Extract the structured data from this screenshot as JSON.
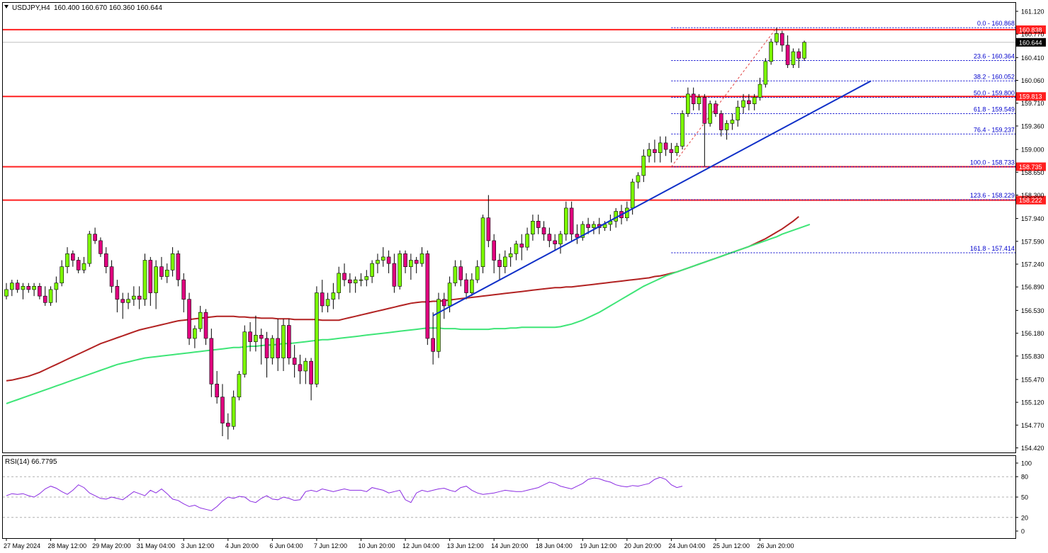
{
  "header": {
    "symbol": "USDJPY,H4",
    "ohlc": "160.400 160.670 160.360 160.644"
  },
  "rsi": {
    "label": "RSI(14) 66.7795",
    "levels": [
      100,
      80,
      50,
      20,
      0
    ],
    "ticks": [
      "100",
      "80",
      "50",
      "20",
      "0"
    ],
    "range": [
      0,
      100
    ],
    "series": [
      52,
      55,
      54,
      55,
      52,
      50,
      55,
      62,
      66,
      63,
      58,
      54,
      60,
      68,
      64,
      56,
      52,
      48,
      47,
      50,
      48,
      46,
      52,
      58,
      55,
      52,
      60,
      56,
      62,
      55,
      47,
      45,
      40,
      36,
      38,
      34,
      32,
      30,
      36,
      44,
      50,
      48,
      51,
      50,
      44,
      42,
      48,
      52,
      47,
      46,
      50,
      48,
      45,
      46,
      58,
      60,
      58,
      62,
      60,
      58,
      60,
      62,
      60,
      60,
      60,
      58,
      64,
      62,
      60,
      56,
      58,
      60,
      46,
      42,
      56,
      60,
      58,
      60,
      62,
      63,
      60,
      58,
      64,
      66,
      60,
      56,
      54,
      55,
      56,
      58,
      60,
      59,
      58,
      58,
      60,
      62,
      64,
      68,
      72,
      70,
      66,
      64,
      62,
      66,
      70,
      76,
      78,
      77,
      74,
      72,
      68,
      66,
      65,
      67,
      66,
      68,
      70,
      76,
      79,
      76,
      68,
      64,
      66
    ]
  },
  "chart_data": {
    "type": "candlestick",
    "symbol": "USDJPY",
    "timeframe": "H4",
    "ylim": [
      154.35,
      161.25
    ],
    "y_ticks": [
      "161.120",
      "160.770",
      "160.410",
      "160.060",
      "159.710",
      "159.360",
      "159.000",
      "158.650",
      "158.300",
      "157.940",
      "157.590",
      "157.240",
      "156.890",
      "156.530",
      "156.180",
      "155.830",
      "155.470",
      "155.120",
      "154.770",
      "154.420"
    ],
    "y_tick_values": [
      161.12,
      160.77,
      160.41,
      160.06,
      159.71,
      159.36,
      159.0,
      158.65,
      158.3,
      157.94,
      157.59,
      157.24,
      156.89,
      156.53,
      156.18,
      155.83,
      155.47,
      155.12,
      154.77,
      154.42
    ],
    "x_labels": [
      "27 May 2024",
      "28 May 12:00",
      "29 May 20:00",
      "31 May 04:00",
      "3 Jun 12:00",
      "4 Jun 20:00",
      "6 Jun 04:00",
      "7 Jun 12:00",
      "10 Jun 20:00",
      "12 Jun 04:00",
      "13 Jun 12:00",
      "14 Jun 20:00",
      "18 Jun 04:00",
      "19 Jun 12:00",
      "20 Jun 20:00",
      "24 Jun 04:00",
      "25 Jun 12:00",
      "26 Jun 20:00"
    ],
    "x_label_bars": [
      0,
      8,
      16,
      24,
      32,
      40,
      48,
      56,
      64,
      72,
      80,
      88,
      96,
      104,
      112,
      120,
      128,
      136
    ],
    "candles": [
      [
        156.75,
        156.95,
        156.7,
        156.85
      ],
      [
        156.85,
        157.0,
        156.75,
        156.95
      ],
      [
        156.95,
        157.0,
        156.8,
        156.85
      ],
      [
        156.85,
        156.95,
        156.7,
        156.9
      ],
      [
        156.9,
        156.95,
        156.8,
        156.85
      ],
      [
        156.85,
        156.95,
        156.75,
        156.9
      ],
      [
        156.9,
        156.95,
        156.7,
        156.75
      ],
      [
        156.75,
        156.9,
        156.6,
        156.65
      ],
      [
        156.65,
        156.9,
        156.6,
        156.85
      ],
      [
        156.85,
        157.05,
        156.65,
        156.95
      ],
      [
        156.95,
        157.3,
        156.9,
        157.2
      ],
      [
        157.2,
        157.5,
        157.1,
        157.4
      ],
      [
        157.4,
        157.45,
        157.2,
        157.3
      ],
      [
        157.3,
        157.35,
        157.1,
        157.15
      ],
      [
        157.15,
        157.35,
        157.1,
        157.25
      ],
      [
        157.25,
        157.75,
        157.2,
        157.7
      ],
      [
        157.7,
        157.8,
        157.55,
        157.6
      ],
      [
        157.6,
        157.65,
        157.35,
        157.4
      ],
      [
        157.4,
        157.5,
        157.1,
        157.2
      ],
      [
        157.2,
        157.3,
        156.8,
        156.9
      ],
      [
        156.9,
        157.0,
        156.5,
        156.7
      ],
      [
        156.7,
        156.8,
        156.4,
        156.65
      ],
      [
        156.65,
        156.8,
        156.55,
        156.7
      ],
      [
        156.7,
        156.9,
        156.6,
        156.75
      ],
      [
        156.75,
        156.9,
        156.55,
        156.7
      ],
      [
        156.7,
        157.4,
        156.6,
        157.3
      ],
      [
        157.3,
        157.35,
        156.6,
        156.8
      ],
      [
        156.8,
        157.3,
        156.55,
        157.2
      ],
      [
        157.2,
        157.35,
        157.0,
        157.05
      ],
      [
        157.05,
        157.25,
        156.95,
        157.15
      ],
      [
        157.15,
        157.5,
        157.05,
        157.4
      ],
      [
        157.4,
        157.45,
        156.9,
        157.0
      ],
      [
        157.0,
        157.1,
        156.5,
        156.7
      ],
      [
        156.7,
        156.8,
        156.0,
        156.1
      ],
      [
        156.1,
        156.3,
        155.95,
        156.25
      ],
      [
        156.25,
        156.6,
        156.2,
        156.5
      ],
      [
        156.5,
        156.55,
        156.0,
        156.1
      ],
      [
        156.1,
        156.25,
        155.2,
        155.4
      ],
      [
        155.4,
        155.6,
        155.1,
        155.2
      ],
      [
        155.2,
        155.4,
        154.6,
        154.8
      ],
      [
        154.8,
        154.95,
        154.55,
        154.75
      ],
      [
        154.75,
        155.3,
        154.7,
        155.2
      ],
      [
        155.2,
        155.6,
        155.15,
        155.55
      ],
      [
        155.55,
        156.3,
        155.5,
        156.2
      ],
      [
        156.2,
        156.35,
        155.9,
        156.05
      ],
      [
        156.05,
        156.45,
        155.9,
        156.15
      ],
      [
        156.15,
        156.25,
        155.7,
        156.1
      ],
      [
        156.1,
        156.2,
        155.5,
        155.8
      ],
      [
        155.8,
        156.15,
        155.7,
        156.1
      ],
      [
        156.1,
        156.4,
        155.6,
        155.8
      ],
      [
        155.8,
        156.4,
        155.6,
        156.3
      ],
      [
        156.3,
        156.4,
        155.7,
        155.8
      ],
      [
        155.8,
        156.0,
        155.5,
        155.7
      ],
      [
        155.7,
        155.85,
        155.4,
        155.6
      ],
      [
        155.6,
        155.8,
        155.4,
        155.75
      ],
      [
        155.75,
        155.8,
        155.15,
        155.4
      ],
      [
        155.4,
        156.9,
        155.35,
        156.8
      ],
      [
        156.8,
        157.0,
        156.5,
        156.6
      ],
      [
        156.6,
        156.8,
        156.5,
        156.7
      ],
      [
        156.7,
        156.95,
        156.55,
        156.8
      ],
      [
        156.8,
        157.2,
        156.7,
        157.1
      ],
      [
        157.1,
        157.25,
        156.9,
        157.0
      ],
      [
        157.0,
        157.1,
        156.8,
        156.95
      ],
      [
        156.95,
        157.05,
        156.8,
        157.0
      ],
      [
        157.0,
        157.1,
        156.9,
        157.0
      ],
      [
        157.0,
        157.15,
        156.9,
        157.05
      ],
      [
        157.05,
        157.3,
        156.95,
        157.25
      ],
      [
        157.25,
        157.4,
        157.1,
        157.3
      ],
      [
        157.3,
        157.5,
        157.2,
        157.35
      ],
      [
        157.35,
        157.45,
        157.1,
        157.25
      ],
      [
        157.25,
        157.4,
        156.8,
        156.9
      ],
      [
        156.9,
        157.45,
        156.85,
        157.4
      ],
      [
        157.4,
        157.45,
        157.1,
        157.2
      ],
      [
        157.2,
        157.4,
        157.0,
        157.3
      ],
      [
        157.3,
        157.35,
        157.1,
        157.25
      ],
      [
        157.25,
        157.5,
        157.2,
        157.4
      ],
      [
        157.4,
        157.45,
        156.0,
        156.1
      ],
      [
        156.1,
        156.5,
        155.7,
        155.9
      ],
      [
        155.9,
        156.8,
        155.8,
        156.7
      ],
      [
        156.7,
        156.8,
        156.4,
        156.6
      ],
      [
        156.6,
        157.05,
        156.5,
        156.95
      ],
      [
        156.95,
        157.3,
        156.9,
        157.2
      ],
      [
        157.2,
        157.3,
        156.9,
        157.0
      ],
      [
        157.0,
        157.1,
        156.7,
        156.8
      ],
      [
        156.8,
        157.1,
        156.75,
        157.0
      ],
      [
        157.0,
        157.3,
        156.95,
        157.2
      ],
      [
        157.2,
        158.0,
        157.1,
        157.95
      ],
      [
        157.95,
        158.3,
        157.5,
        157.6
      ],
      [
        157.6,
        157.7,
        157.1,
        157.3
      ],
      [
        157.3,
        157.4,
        157.0,
        157.2
      ],
      [
        157.2,
        157.45,
        157.1,
        157.35
      ],
      [
        157.35,
        157.5,
        157.2,
        157.4
      ],
      [
        157.4,
        157.6,
        157.3,
        157.55
      ],
      [
        157.55,
        157.7,
        157.3,
        157.5
      ],
      [
        157.5,
        157.8,
        157.45,
        157.7
      ],
      [
        157.7,
        158.0,
        157.6,
        157.9
      ],
      [
        157.9,
        158.0,
        157.7,
        157.8
      ],
      [
        157.8,
        157.9,
        157.6,
        157.7
      ],
      [
        157.7,
        157.8,
        157.5,
        157.6
      ],
      [
        157.6,
        157.7,
        157.45,
        157.55
      ],
      [
        157.55,
        157.75,
        157.4,
        157.7
      ],
      [
        157.7,
        158.2,
        157.6,
        158.1
      ],
      [
        158.1,
        158.2,
        157.6,
        157.7
      ],
      [
        157.7,
        157.85,
        157.55,
        157.65
      ],
      [
        157.65,
        157.9,
        157.6,
        157.85
      ],
      [
        157.85,
        157.95,
        157.7,
        157.8
      ],
      [
        157.8,
        157.9,
        157.7,
        157.85
      ],
      [
        157.85,
        157.95,
        157.7,
        157.8
      ],
      [
        157.8,
        157.9,
        157.75,
        157.85
      ],
      [
        157.85,
        158.0,
        157.75,
        157.9
      ],
      [
        157.9,
        158.1,
        157.8,
        158.05
      ],
      [
        158.05,
        158.15,
        157.85,
        157.95
      ],
      [
        157.95,
        158.2,
        157.9,
        158.1
      ],
      [
        158.1,
        158.55,
        158.0,
        158.5
      ],
      [
        158.5,
        158.65,
        158.4,
        158.6
      ],
      [
        158.6,
        159.0,
        158.5,
        158.9
      ],
      [
        158.9,
        159.1,
        158.8,
        159.0
      ],
      [
        159.0,
        159.15,
        158.8,
        158.95
      ],
      [
        158.95,
        159.2,
        158.8,
        159.1
      ],
      [
        159.1,
        159.2,
        158.9,
        159.0
      ],
      [
        159.0,
        159.1,
        158.8,
        158.95
      ],
      [
        158.95,
        159.1,
        158.9,
        159.05
      ],
      [
        159.05,
        159.6,
        159.0,
        159.55
      ],
      [
        159.55,
        159.95,
        159.5,
        159.85
      ],
      [
        159.85,
        159.95,
        159.6,
        159.7
      ],
      [
        159.7,
        159.85,
        159.6,
        159.8
      ],
      [
        159.8,
        159.85,
        158.74,
        159.4
      ],
      [
        159.4,
        159.75,
        159.35,
        159.7
      ],
      [
        159.7,
        159.75,
        159.5,
        159.55
      ],
      [
        159.55,
        159.6,
        159.2,
        159.3
      ],
      [
        159.3,
        159.45,
        159.15,
        159.4
      ],
      [
        159.4,
        159.55,
        159.3,
        159.45
      ],
      [
        159.45,
        159.75,
        159.35,
        159.65
      ],
      [
        159.65,
        159.85,
        159.55,
        159.75
      ],
      [
        159.75,
        159.85,
        159.6,
        159.7
      ],
      [
        159.7,
        159.85,
        159.6,
        159.8
      ],
      [
        159.8,
        160.1,
        159.75,
        160.0
      ],
      [
        160.0,
        160.4,
        159.95,
        160.35
      ],
      [
        160.35,
        160.7,
        160.3,
        160.65
      ],
      [
        160.65,
        160.87,
        160.6,
        160.78
      ],
      [
        160.78,
        160.82,
        160.5,
        160.6
      ],
      [
        160.6,
        160.75,
        160.25,
        160.3
      ],
      [
        160.3,
        160.55,
        160.25,
        160.5
      ],
      [
        160.5,
        160.55,
        160.25,
        160.4
      ],
      [
        160.4,
        160.67,
        160.36,
        160.644
      ]
    ],
    "ma_slow": [
      155.45,
      155.46,
      155.48,
      155.5,
      155.52,
      155.55,
      155.58,
      155.62,
      155.66,
      155.7,
      155.74,
      155.78,
      155.82,
      155.86,
      155.9,
      155.94,
      155.98,
      156.02,
      156.05,
      156.08,
      156.11,
      156.14,
      156.17,
      156.2,
      156.23,
      156.25,
      156.27,
      156.29,
      156.31,
      156.33,
      156.35,
      156.37,
      156.38,
      156.39,
      156.4,
      156.41,
      156.42,
      156.43,
      156.44,
      156.44,
      156.44,
      156.44,
      156.43,
      156.43,
      156.42,
      156.42,
      156.41,
      156.41,
      156.41,
      156.4,
      156.4,
      156.4,
      156.39,
      156.39,
      156.39,
      156.39,
      156.39,
      156.38,
      156.38,
      156.38,
      156.38,
      156.4,
      156.42,
      156.44,
      156.46,
      156.48,
      156.5,
      156.52,
      156.54,
      156.56,
      156.58,
      156.6,
      156.62,
      156.64,
      156.65,
      156.66,
      156.66,
      156.67,
      156.67,
      156.68,
      156.69,
      156.7,
      156.71,
      156.72,
      156.73,
      156.74,
      156.75,
      156.76,
      156.77,
      156.78,
      156.79,
      156.8,
      156.81,
      156.82,
      156.83,
      156.84,
      156.85,
      156.86,
      156.87,
      156.88,
      156.88,
      156.89,
      156.89,
      156.9,
      156.91,
      156.92,
      156.93,
      156.94,
      156.95,
      156.96,
      156.97,
      156.98,
      156.99,
      157.0,
      157.01,
      157.02,
      157.03,
      157.05,
      157.06,
      157.08,
      157.1,
      157.12,
      157.15,
      157.18,
      157.21,
      157.24,
      157.27,
      157.3,
      157.33,
      157.36,
      157.39,
      157.42,
      157.45,
      157.48,
      157.51,
      157.55,
      157.59,
      157.63,
      157.68,
      157.73,
      157.78,
      157.84,
      157.9,
      157.97
    ],
    "ma_fast": [
      155.1,
      155.13,
      155.16,
      155.19,
      155.22,
      155.25,
      155.28,
      155.31,
      155.34,
      155.37,
      155.4,
      155.43,
      155.46,
      155.49,
      155.52,
      155.55,
      155.58,
      155.61,
      155.64,
      155.67,
      155.7,
      155.72,
      155.74,
      155.76,
      155.78,
      155.8,
      155.81,
      155.82,
      155.83,
      155.84,
      155.85,
      155.86,
      155.87,
      155.88,
      155.89,
      155.9,
      155.91,
      155.92,
      155.93,
      155.94,
      155.95,
      155.96,
      155.96,
      155.97,
      155.98,
      155.98,
      155.99,
      156.0,
      156.0,
      156.01,
      156.02,
      156.02,
      156.03,
      156.04,
      156.05,
      156.06,
      156.07,
      156.08,
      156.08,
      156.09,
      156.1,
      156.11,
      156.12,
      156.13,
      156.14,
      156.15,
      156.16,
      156.17,
      156.18,
      156.19,
      156.2,
      156.21,
      156.22,
      156.23,
      156.24,
      156.25,
      156.26,
      156.26,
      156.26,
      156.25,
      156.25,
      156.25,
      156.24,
      156.24,
      156.24,
      156.24,
      156.24,
      156.24,
      156.25,
      156.25,
      156.25,
      156.26,
      156.26,
      156.27,
      156.27,
      156.27,
      156.27,
      156.27,
      156.27,
      156.27,
      156.28,
      156.3,
      156.32,
      156.35,
      156.38,
      156.42,
      156.46,
      156.5,
      156.55,
      156.6,
      156.65,
      156.7,
      156.75,
      156.8,
      156.85,
      156.9,
      156.94,
      156.98,
      157.02,
      157.06,
      157.09,
      157.12,
      157.15,
      157.18,
      157.21,
      157.24,
      157.27,
      157.3,
      157.33,
      157.36,
      157.39,
      157.42,
      157.45,
      157.48,
      157.51,
      157.54,
      157.57,
      157.6,
      157.63,
      157.66,
      157.7,
      157.73,
      157.76,
      157.79,
      157.82,
      157.85
    ],
    "horizontal_levels": [
      {
        "price": 160.838,
        "label": "160.838"
      },
      {
        "price": 159.813,
        "label": "159.813"
      },
      {
        "price": 158.735,
        "label": "158.735"
      },
      {
        "price": 158.222,
        "label": "158.222"
      }
    ],
    "current_price": {
      "price": 160.644,
      "label": "160.644"
    },
    "fibonacci": [
      {
        "price": 160.868,
        "label": "0.0 - 160.868"
      },
      {
        "price": 160.364,
        "label": "23.6 - 160.364"
      },
      {
        "price": 160.052,
        "label": "38.2 - 160.052"
      },
      {
        "price": 159.8,
        "label": "50.0 - 159.800"
      },
      {
        "price": 159.549,
        "label": "61.8 - 159.549"
      },
      {
        "price": 159.237,
        "label": "76.4 - 159.237"
      },
      {
        "price": 158.733,
        "label": "100.0 - 158.733"
      },
      {
        "price": 158.229,
        "label": "123.6 - 158.229"
      },
      {
        "price": 157.414,
        "label": "161.8 - 157.414"
      }
    ],
    "fib_range_bars": [
      120,
      148
    ],
    "trendline": {
      "from_bar": 77,
      "from_price": 156.45,
      "to_bar": 156,
      "to_price": 160.05
    },
    "colors": {
      "bull": "#7cfc00",
      "bear": "#e0007f",
      "ma_slow": "#b22222",
      "ma_fast": "#3ee577",
      "levels": "#ff2020",
      "trendline": "#1030c8",
      "fib": "#0000cd",
      "rsi_line": "#8a2be2"
    }
  }
}
